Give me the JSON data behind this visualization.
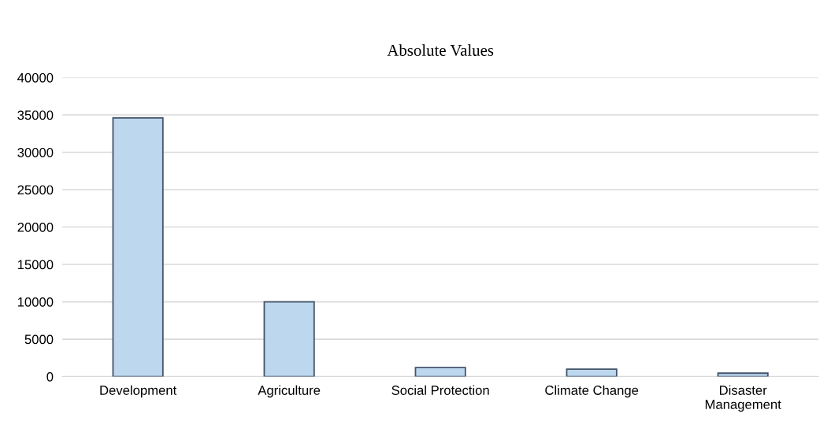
{
  "chart_data": {
    "type": "bar",
    "title": "Absolute Values",
    "categories": [
      "Development",
      "Agriculture",
      "Social Protection",
      "Climate Change",
      "Disaster\nManagement"
    ],
    "values": [
      34600,
      10000,
      1200,
      1000,
      450
    ],
    "color": "#bdd7ee",
    "ylim": [
      0,
      40000
    ],
    "yticks": [
      0,
      5000,
      10000,
      15000,
      20000,
      25000,
      30000,
      35000,
      40000
    ],
    "grid": "y"
  }
}
